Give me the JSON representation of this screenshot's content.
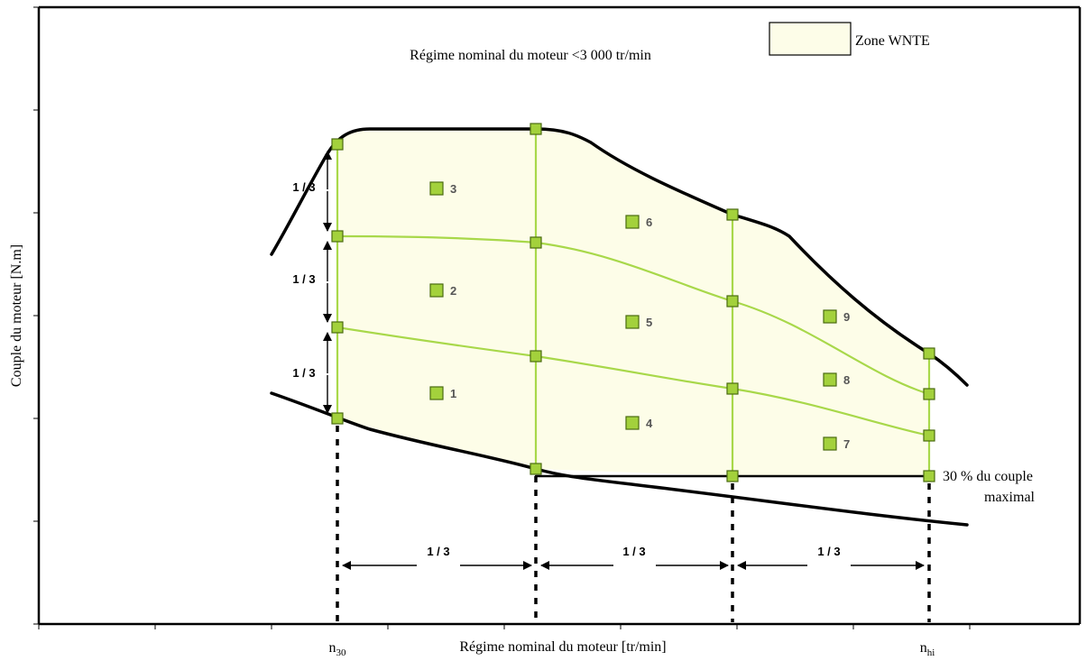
{
  "title": "Régime nominal du moteur <3 000 tr/min",
  "legend": {
    "label": "Zone WNTE",
    "color": "#fdfde8"
  },
  "axes": {
    "x_label": "Régime nominal du moteur [tr/min]",
    "y_label": "Couple du moteur [N.m]",
    "n30": {
      "main": "n",
      "sub": "30"
    },
    "nhi": {
      "main": "n",
      "sub": "hi"
    }
  },
  "division_label": "1 / 3",
  "min_torque_note": {
    "line1": "30 % du couple",
    "line2": "maximal"
  },
  "cells": [
    "1",
    "2",
    "3",
    "4",
    "5",
    "6",
    "7",
    "8",
    "9"
  ],
  "colors": {
    "zone_fill": "#fdfde8",
    "grid_line": "#a8d84a",
    "marker_fill": "#a3d13c",
    "marker_stroke": "#4a6b10",
    "curve": "#000000"
  }
}
